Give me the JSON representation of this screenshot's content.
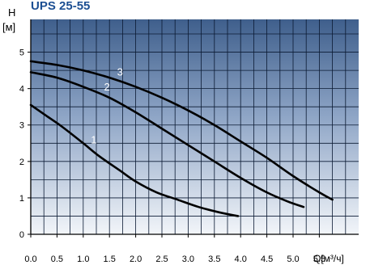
{
  "chart_data": {
    "type": "line",
    "title": "UPS 25-55",
    "ylabel": "H",
    "yunit": "[м]",
    "xlabel": "Q[м³/ч]",
    "xlim": [
      0,
      6.25
    ],
    "ylim": [
      0,
      5.9
    ],
    "x_ticks": [
      "0.0",
      "0.5",
      "1.0",
      "1.5",
      "2.0",
      "2.5",
      "3.0",
      "3.5",
      "4.0",
      "4.5",
      "5.0",
      "5.5"
    ],
    "y_ticks": [
      "0",
      "1",
      "2",
      "3",
      "4",
      "5"
    ],
    "grid": true,
    "series": [
      {
        "name": "1",
        "x": [
          0.0,
          0.3,
          0.6,
          1.0,
          1.3,
          1.7,
          2.0,
          2.4,
          2.8,
          3.2,
          3.6,
          3.95
        ],
        "y": [
          3.55,
          3.25,
          2.95,
          2.5,
          2.15,
          1.75,
          1.45,
          1.15,
          0.95,
          0.75,
          0.6,
          0.5
        ]
      },
      {
        "name": "2",
        "x": [
          0.0,
          0.5,
          1.0,
          1.5,
          2.0,
          2.5,
          3.0,
          3.5,
          4.0,
          4.5,
          4.9,
          5.2
        ],
        "y": [
          4.45,
          4.3,
          4.05,
          3.75,
          3.35,
          2.9,
          2.45,
          2.0,
          1.55,
          1.15,
          0.9,
          0.75
        ]
      },
      {
        "name": "3",
        "x": [
          0.0,
          0.5,
          1.0,
          1.5,
          2.0,
          2.5,
          3.0,
          3.5,
          4.0,
          4.5,
          5.0,
          5.5,
          5.75
        ],
        "y": [
          4.75,
          4.65,
          4.5,
          4.3,
          4.05,
          3.75,
          3.4,
          3.0,
          2.55,
          2.1,
          1.6,
          1.15,
          0.95
        ]
      }
    ],
    "series_label_at_x": [
      1.1,
      1.35,
      1.6
    ]
  }
}
